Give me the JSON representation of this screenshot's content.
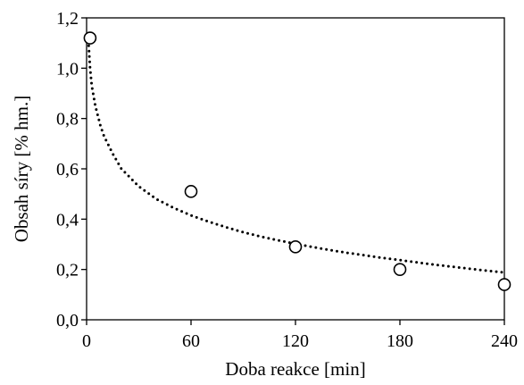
{
  "chart_data": {
    "type": "scatter",
    "title": "",
    "xlabel": "Doba reakce [min]",
    "ylabel": "Obsah síry [% hm.]",
    "xlim": [
      0,
      240
    ],
    "ylim": [
      0,
      1.2
    ],
    "x_ticks": [
      0,
      60,
      120,
      180,
      240
    ],
    "x_tick_labels": [
      "0",
      "60",
      "120",
      "180",
      "240"
    ],
    "y_ticks": [
      0,
      0.2,
      0.4,
      0.6,
      0.8,
      1.0,
      1.2
    ],
    "y_tick_labels": [
      "0,0",
      "0,2",
      "0,4",
      "0,6",
      "0,8",
      "1,0",
      "1,2"
    ],
    "grid": false,
    "legend": "none",
    "series": [
      {
        "marker": "open-circle",
        "x": [
          2,
          60,
          120,
          180,
          240
        ],
        "y": [
          1.12,
          0.51,
          0.29,
          0.2,
          0.14
        ]
      }
    ],
    "trendline": {
      "style": "dotted",
      "x": [
        1,
        2,
        3,
        5,
        8,
        10,
        15,
        20,
        30,
        40,
        50,
        60,
        70,
        80,
        90,
        100,
        110,
        120,
        130,
        140,
        150,
        160,
        170,
        180,
        190,
        200,
        210,
        220,
        230,
        240
      ],
      "y": [
        1.11,
        1.0,
        0.93,
        0.85,
        0.77,
        0.73,
        0.66,
        0.6,
        0.53,
        0.48,
        0.445,
        0.415,
        0.39,
        0.368,
        0.348,
        0.331,
        0.316,
        0.302,
        0.289,
        0.277,
        0.266,
        0.256,
        0.246,
        0.237,
        0.228,
        0.219,
        0.211,
        0.203,
        0.195,
        0.188
      ]
    },
    "colors": {
      "marks": "#000000",
      "background": "#ffffff"
    }
  }
}
